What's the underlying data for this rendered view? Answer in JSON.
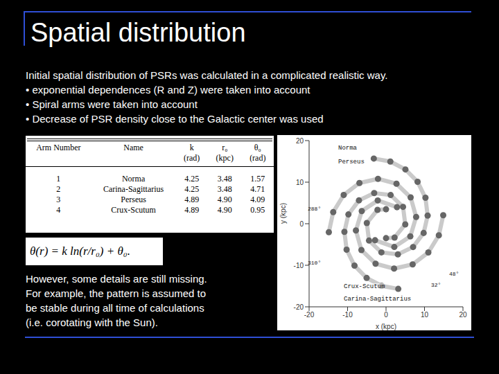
{
  "title": "Spatial distribution",
  "intro": "Initial spatial distribution of PSRs was calculated in a complicated realistic way.",
  "bullets": [
    "• exponential dependences (R and Z) were taken into account",
    "• Spiral arms were taken into account",
    "• Decrease of PSR density close to the Galactic center was used"
  ],
  "table": {
    "columns": [
      {
        "label": "Arm Number"
      },
      {
        "label": "Name"
      },
      {
        "label": "k",
        "unit": "(rad)"
      },
      {
        "label": "r₀",
        "unit": "(kpc)"
      },
      {
        "label": "θ₀",
        "unit": "(rad)"
      }
    ],
    "rows": [
      [
        "1",
        "Norma",
        "4.25",
        "3.48",
        "1.57"
      ],
      [
        "2",
        "Carina-Sagittarius",
        "4.25",
        "3.48",
        "4.71"
      ],
      [
        "3",
        "Perseus",
        "4.89",
        "4.90",
        "4.09"
      ],
      [
        "4",
        "Crux-Scutum",
        "4.89",
        "4.90",
        "0.95"
      ]
    ]
  },
  "equation": "θ(r) = k ln(r/r₀) + θ₀.",
  "note_lines": [
    "However, some details are still missing.",
    "For example, the pattern is assumed to",
    "be stable during all time of calculations",
    "(i.e. corotating with the Sun)."
  ],
  "chart_data": {
    "type": "scatter",
    "xlabel": "x (kpc)",
    "ylabel": "y (kpc)",
    "xlim": [
      -20,
      20
    ],
    "ylim": [
      -20,
      20
    ],
    "xticks": [
      -20,
      -10,
      0,
      10,
      20
    ],
    "yticks": [
      -20,
      -10,
      0,
      10,
      20
    ],
    "series": [
      {
        "name": "Norma",
        "color": "#666666",
        "x": [
          0,
          -2.22,
          -5.0,
          -4.42,
          -1.2,
          3.08,
          7.04,
          9.78,
          10.82,
          10.25,
          8.2,
          5.04,
          1.12,
          -3.18
        ],
        "y": [
          3.48,
          3.33,
          0.16,
          -4.06,
          -6.9,
          -7.38,
          -5.61,
          -2.23,
          1.96,
          6.24,
          10.09,
          13.06,
          14.96,
          15.68
        ]
      },
      {
        "name": "Carina-Sagittarius",
        "color": "#666666",
        "x": [
          0,
          2.22,
          5.0,
          4.42,
          1.2,
          -3.08,
          -7.04,
          -9.78,
          -10.82,
          -10.25,
          -8.2,
          -5.04,
          -1.12,
          3.18
        ],
        "y": [
          -3.48,
          -3.33,
          -0.16,
          4.06,
          6.9,
          7.38,
          5.61,
          2.23,
          -1.96,
          -6.24,
          -10.09,
          -13.06,
          -14.96,
          -15.68
        ]
      },
      {
        "name": "Perseus",
        "color": "#666666",
        "x": [
          -2.85,
          2.15,
          6.31,
          7.83,
          6.4,
          2.72,
          -2.09,
          -6.92,
          -11.0,
          -13.73,
          -14.87
        ],
        "y": [
          -3.98,
          -5.6,
          -3.04,
          1.62,
          6.33,
          9.62,
          10.8,
          9.8,
          6.91,
          2.8,
          -2.04
        ]
      },
      {
        "name": "Crux-Scutum",
        "color": "#666666",
        "x": [
          2.85,
          -2.15,
          -6.31,
          -7.83,
          -6.4,
          -2.72,
          2.09,
          6.92,
          11.0,
          13.73,
          14.87
        ],
        "y": [
          3.98,
          5.6,
          3.04,
          -1.62,
          -6.33,
          -9.62,
          -10.8,
          -9.8,
          -6.91,
          -2.8,
          2.04
        ]
      }
    ],
    "annotations": [
      "288°",
      "310°",
      "48°",
      "32°"
    ]
  }
}
